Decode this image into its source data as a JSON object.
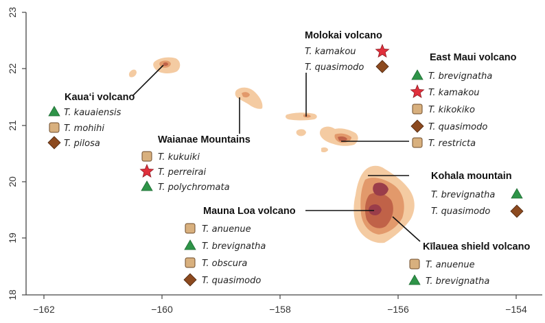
{
  "axes": {
    "x_ticks": [
      "−162",
      "−160",
      "−158",
      "−156",
      "−154"
    ],
    "y_ticks": [
      "18",
      "19",
      "20",
      "21",
      "22",
      "23"
    ]
  },
  "colors": {
    "triangle": "#2e9448",
    "square": "#d8b07e",
    "diamond": "#8c4a1f",
    "star": "#e0303c",
    "island_base": "#f4cba2",
    "island_mid": "#e2996b",
    "island_dark": "#c06248",
    "summit": "#9a3d4a",
    "leader_line": "#111111"
  },
  "groups": [
    {
      "title": "Kaua‘i volcano",
      "species": [
        {
          "marker": "triangle",
          "name": "T. kauaiensis"
        },
        {
          "marker": "square",
          "name": "T. mohihi"
        },
        {
          "marker": "diamond",
          "name": "T. pilosa"
        }
      ]
    },
    {
      "title": "Waianae Mountains",
      "species": [
        {
          "marker": "square",
          "name": "T. kukuiki"
        },
        {
          "marker": "star",
          "name": "T. perreirai"
        },
        {
          "marker": "triangle",
          "name": "T. polychromata"
        }
      ]
    },
    {
      "title": "Molokai volcano",
      "species": [
        {
          "marker": "star",
          "name": "T. kamakou"
        },
        {
          "marker": "diamond",
          "name": "T. quasimodo"
        }
      ]
    },
    {
      "title": "East Maui volcano",
      "species": [
        {
          "marker": "triangle",
          "name": "T. brevignatha"
        },
        {
          "marker": "star",
          "name": "T. kamakou"
        },
        {
          "marker": "square",
          "name": "T. kikokiko"
        },
        {
          "marker": "diamond",
          "name": "T. quasimodo"
        },
        {
          "marker": "square",
          "name": "T. restricta"
        }
      ]
    },
    {
      "title": "Kohala mountain",
      "species": [
        {
          "marker": "triangle",
          "name": "T. brevignatha"
        },
        {
          "marker": "diamond",
          "name": "T. quasimodo"
        }
      ]
    },
    {
      "title": "Mauna Loa volcano",
      "species": [
        {
          "marker": "square",
          "name": "T. anuenue"
        },
        {
          "marker": "triangle",
          "name": "T. brevignatha"
        },
        {
          "marker": "square",
          "name": "T. obscura"
        },
        {
          "marker": "diamond",
          "name": "T. quasimodo"
        }
      ]
    },
    {
      "title": "Kīlauea shield volcano",
      "species": [
        {
          "marker": "square",
          "name": "T. anuenue"
        },
        {
          "marker": "triangle",
          "name": "T. brevignatha"
        }
      ]
    }
  ]
}
